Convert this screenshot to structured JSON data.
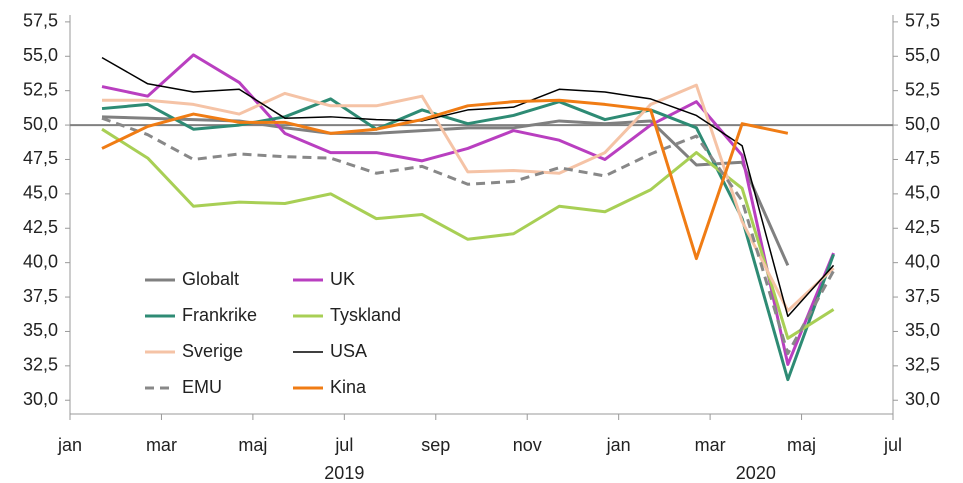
{
  "chart_data": {
    "type": "line",
    "x": [
      0.7,
      1.7,
      2.7,
      3.7,
      4.7,
      5.7,
      6.7,
      7.7,
      8.7,
      9.7,
      10.7,
      11.7,
      12.7,
      13.7,
      14.7,
      15.7,
      16.7
    ],
    "xlim": [
      0,
      18
    ],
    "xticks": [
      {
        "value": 0,
        "label": "jan"
      },
      {
        "value": 2,
        "label": "mar"
      },
      {
        "value": 4,
        "label": "maj"
      },
      {
        "value": 6,
        "label": "jul"
      },
      {
        "value": 8,
        "label": "sep"
      },
      {
        "value": 10,
        "label": "nov"
      },
      {
        "value": 12,
        "label": "jan"
      },
      {
        "value": 14,
        "label": "mar"
      },
      {
        "value": 16,
        "label": "maj"
      },
      {
        "value": 18,
        "label": "jul"
      }
    ],
    "year_labels": [
      {
        "value": 6,
        "label": "2019"
      },
      {
        "value": 15,
        "label": "2020"
      }
    ],
    "ylim": [
      29,
      58
    ],
    "yticks": [
      {
        "value": 30,
        "label": "30,0"
      },
      {
        "value": 32.5,
        "label": "32,5"
      },
      {
        "value": 35,
        "label": "35,0"
      },
      {
        "value": 37.5,
        "label": "37,5"
      },
      {
        "value": 40,
        "label": "40,0"
      },
      {
        "value": 42.5,
        "label": "42,5"
      },
      {
        "value": 45,
        "label": "45,0"
      },
      {
        "value": 47.5,
        "label": "47,5"
      },
      {
        "value": 50,
        "label": "50,0"
      },
      {
        "value": 52.5,
        "label": "52,5"
      },
      {
        "value": 55,
        "label": "55,0"
      },
      {
        "value": 57.5,
        "label": "57,5"
      }
    ],
    "y2lim": [
      29,
      58
    ],
    "y2ticks": [
      {
        "value": 30,
        "label": "30,0"
      },
      {
        "value": 32.5,
        "label": "32,5"
      },
      {
        "value": 35,
        "label": "35,0"
      },
      {
        "value": 37.5,
        "label": "37,5"
      },
      {
        "value": 40,
        "label": "40,0"
      },
      {
        "value": 42.5,
        "label": "42,5"
      },
      {
        "value": 45,
        "label": "45,0"
      },
      {
        "value": 47.5,
        "label": "47,5"
      },
      {
        "value": 50,
        "label": "50,0"
      },
      {
        "value": 52.5,
        "label": "52,5"
      },
      {
        "value": 55,
        "label": "55,0"
      },
      {
        "value": 57.5,
        "label": "57,5"
      }
    ],
    "reference_line": 50,
    "series": [
      {
        "name": "Globalt",
        "color": "#808080",
        "width": 3,
        "values": [
          50.6,
          50.5,
          50.4,
          50.3,
          49.8,
          49.4,
          49.4,
          49.6,
          49.8,
          49.8,
          50.3,
          50.1,
          50.3,
          47.1,
          47.3,
          39.8,
          null
        ]
      },
      {
        "name": "UK",
        "color": "#b93fc0",
        "width": 3,
        "values": [
          52.8,
          52.1,
          55.1,
          53.1,
          49.4,
          48.0,
          48.0,
          47.4,
          48.3,
          49.6,
          48.9,
          47.5,
          50.0,
          51.7,
          47.8,
          32.6,
          40.7
        ]
      },
      {
        "name": "Frankrike",
        "color": "#2e8b74",
        "width": 3,
        "values": [
          51.2,
          51.5,
          49.7,
          50.0,
          50.6,
          51.9,
          49.7,
          51.1,
          50.1,
          50.7,
          51.7,
          50.4,
          51.1,
          49.8,
          43.2,
          31.5,
          40.6
        ]
      },
      {
        "name": "Tyskland",
        "color": "#a8cf55",
        "width": 3,
        "values": [
          49.7,
          47.6,
          44.1,
          44.4,
          44.3,
          45.0,
          43.2,
          43.5,
          41.7,
          42.1,
          44.1,
          43.7,
          45.3,
          48.0,
          45.4,
          34.5,
          36.6
        ]
      },
      {
        "name": "Sverige",
        "color": "#f5c3a6",
        "width": 3,
        "values": [
          51.8,
          51.8,
          51.5,
          50.8,
          52.3,
          51.4,
          51.4,
          52.1,
          46.6,
          46.7,
          46.5,
          48.0,
          51.5,
          52.9,
          43.0,
          36.5,
          39.6
        ]
      },
      {
        "name": "USA",
        "color": "#000000",
        "width": 1.5,
        "values": [
          54.9,
          53.0,
          52.4,
          52.6,
          50.5,
          50.6,
          50.4,
          50.3,
          51.1,
          51.3,
          52.6,
          52.4,
          51.9,
          50.7,
          48.5,
          36.1,
          39.8
        ]
      },
      {
        "name": "EMU",
        "color": "#888888",
        "width": 3,
        "dashed": true,
        "values": [
          50.5,
          49.3,
          47.5,
          47.9,
          47.7,
          47.6,
          46.5,
          47.0,
          45.7,
          45.9,
          46.9,
          46.3,
          47.9,
          49.2,
          44.5,
          33.4,
          39.4
        ]
      },
      {
        "name": "Kina",
        "color": "#f07c14",
        "width": 3,
        "values": [
          48.3,
          49.9,
          50.8,
          50.2,
          50.2,
          49.4,
          49.7,
          50.4,
          51.4,
          51.7,
          51.8,
          51.5,
          51.1,
          40.3,
          50.1,
          49.4,
          null
        ]
      }
    ]
  }
}
